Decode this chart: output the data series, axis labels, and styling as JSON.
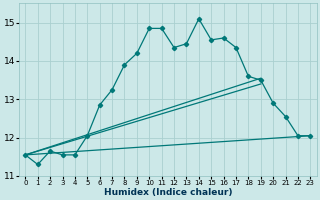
{
  "xlabel": "Humidex (Indice chaleur)",
  "ylabel": "",
  "bg_color": "#cce8e8",
  "grid_color": "#aad0d0",
  "line_color": "#007878",
  "xlim": [
    -0.5,
    23.5
  ],
  "ylim": [
    11.0,
    15.5
  ],
  "yticks": [
    11,
    12,
    13,
    14,
    15
  ],
  "xticks": [
    0,
    1,
    2,
    3,
    4,
    5,
    6,
    7,
    8,
    9,
    10,
    11,
    12,
    13,
    14,
    15,
    16,
    17,
    18,
    19,
    20,
    21,
    22,
    23
  ],
  "curve1_x": [
    0,
    1,
    2,
    3,
    4,
    5,
    6,
    7,
    8,
    9,
    10,
    11,
    12,
    13,
    14,
    15,
    16,
    17,
    18,
    19,
    20,
    21,
    22,
    23
  ],
  "curve1_y": [
    11.55,
    11.3,
    11.65,
    11.55,
    11.55,
    12.05,
    12.85,
    13.25,
    13.9,
    14.2,
    14.85,
    14.85,
    14.35,
    14.45,
    15.1,
    14.55,
    14.6,
    14.35,
    13.6,
    13.5,
    12.9,
    12.55,
    12.05,
    12.05
  ],
  "line1_x": [
    0,
    19
  ],
  "line1_y": [
    11.55,
    13.55
  ],
  "line2_x": [
    0,
    19
  ],
  "line2_y": [
    11.55,
    13.4
  ],
  "line3_x": [
    0,
    23
  ],
  "line3_y": [
    11.55,
    12.05
  ],
  "marker_x": [
    0,
    1,
    2,
    3,
    4,
    5
  ],
  "marker_y": [
    11.55,
    11.3,
    11.65,
    11.55,
    11.55,
    12.05
  ]
}
